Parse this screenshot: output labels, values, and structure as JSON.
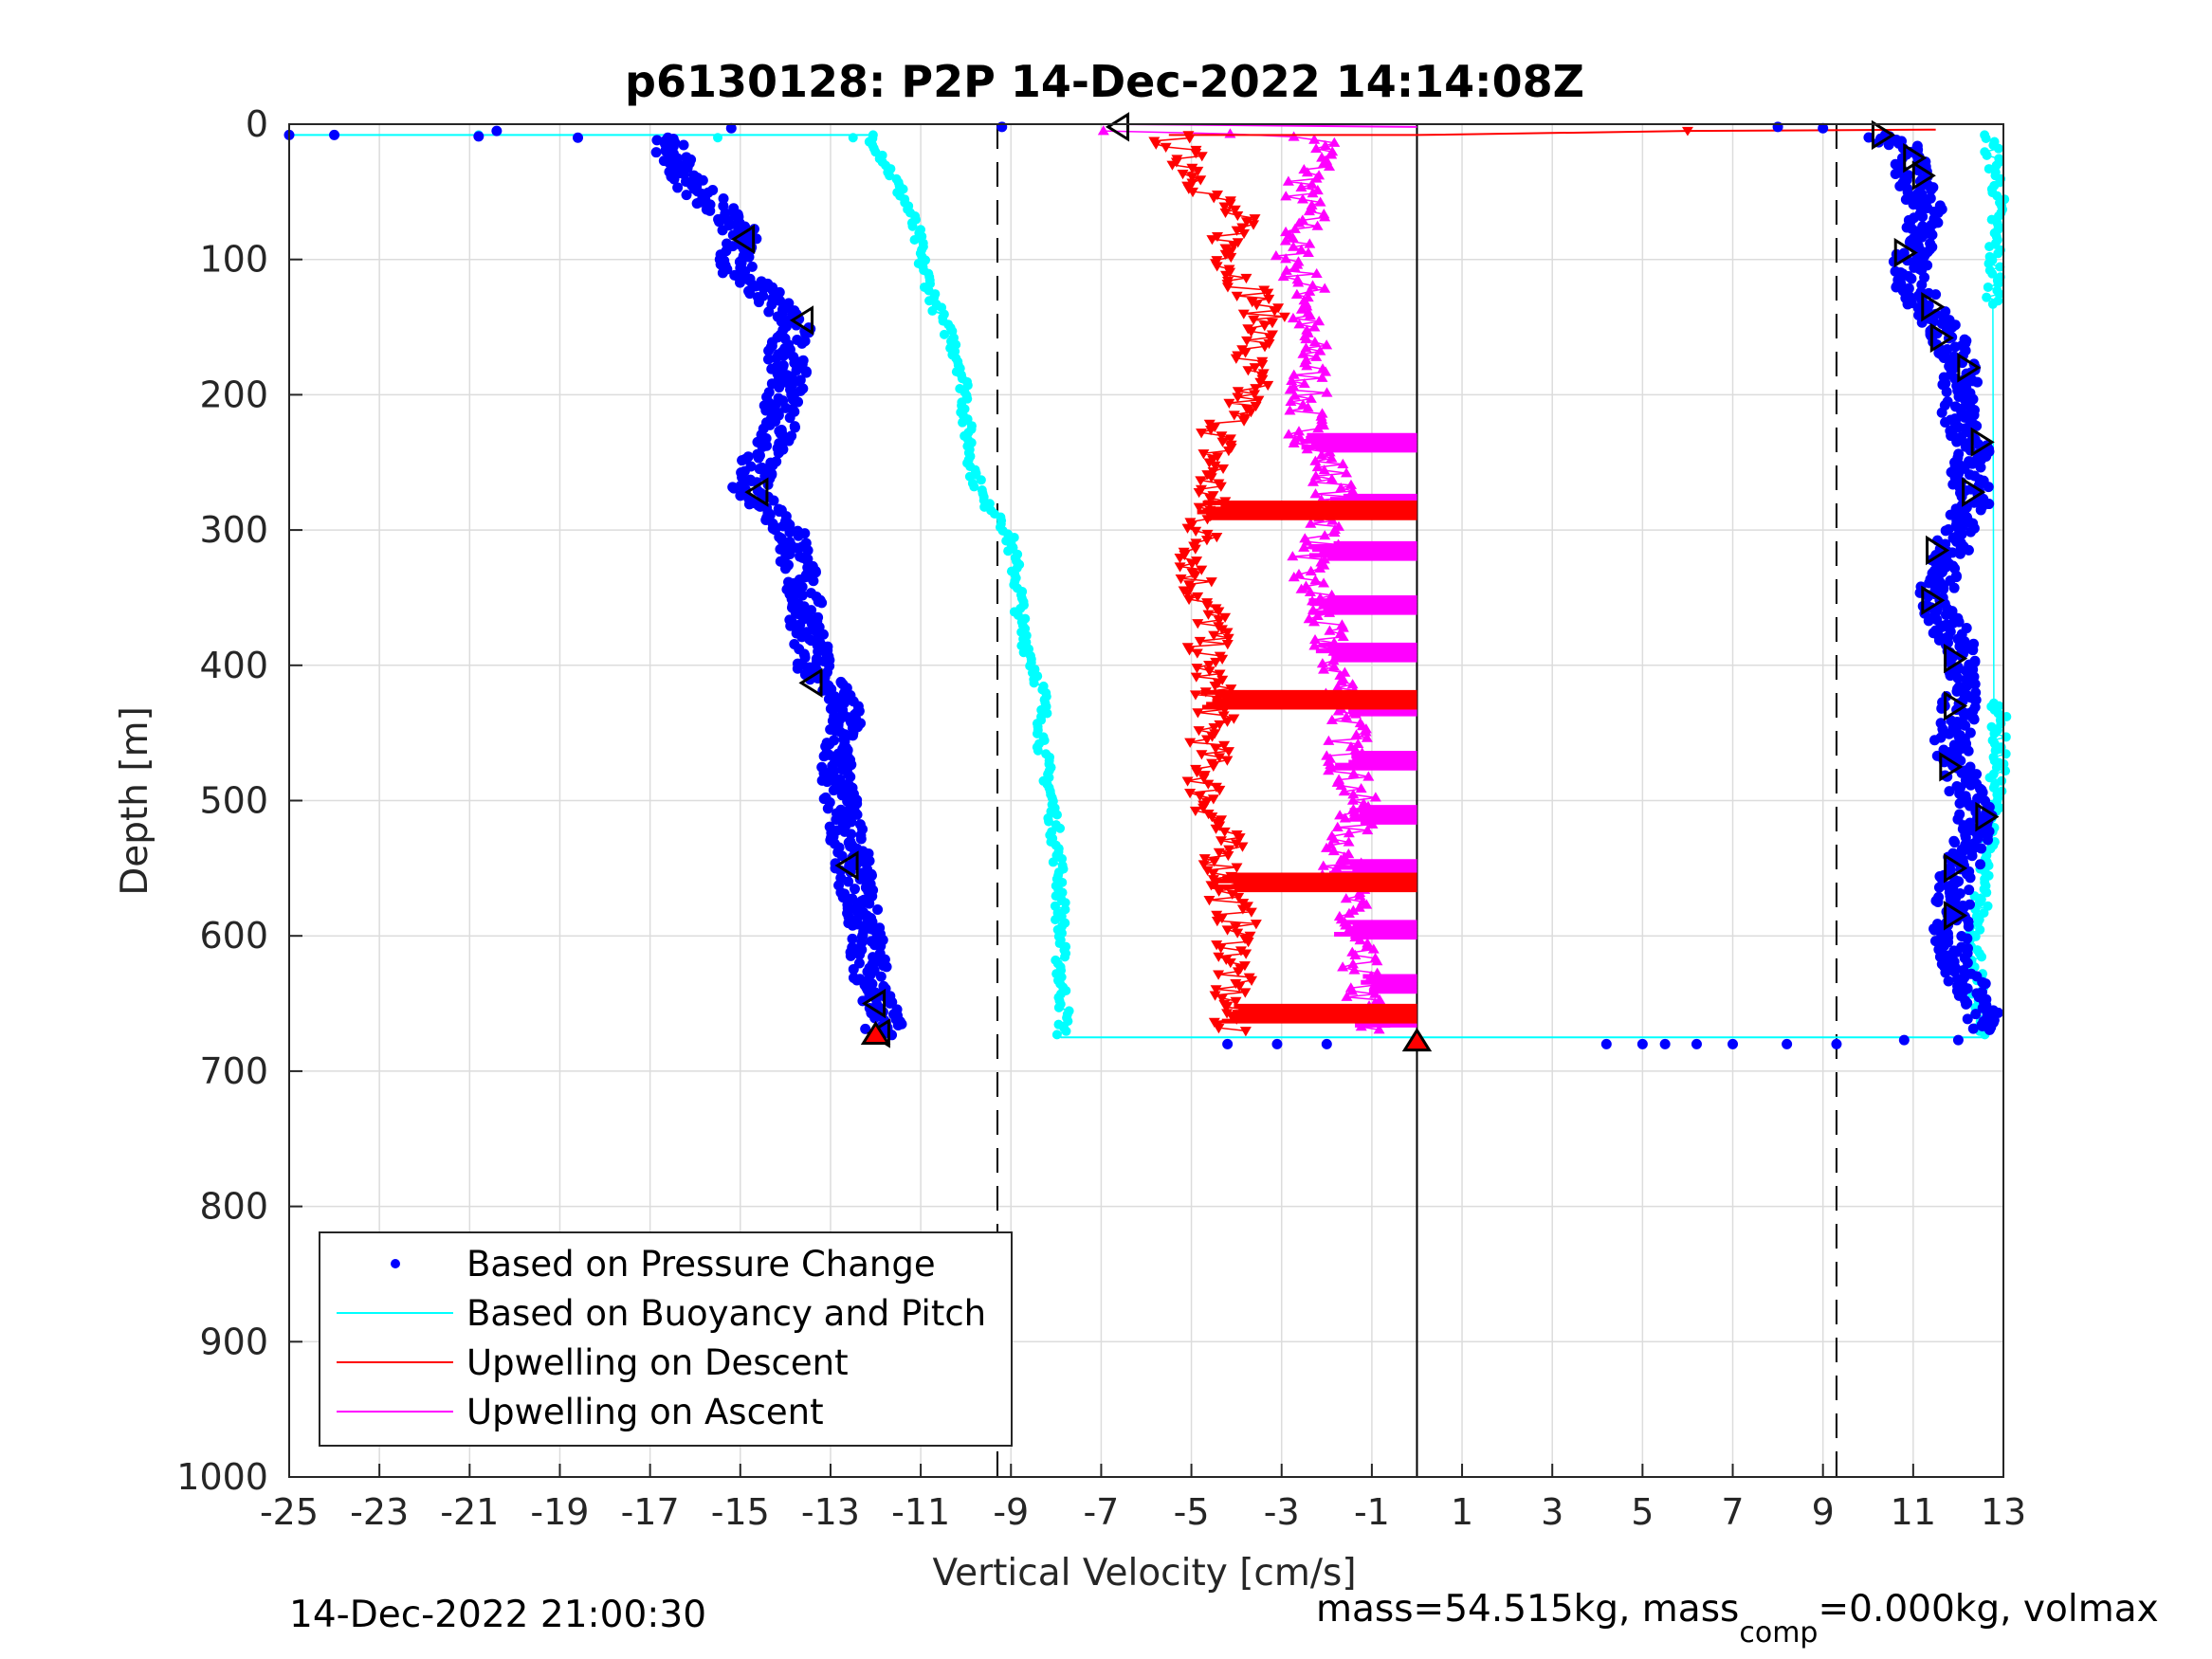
{
  "chart_data": {
    "type": "scatter",
    "title": "p6130128: P2P 14-Dec-2022 14:14:08Z",
    "xlabel": "Vertical Velocity [cm/s]",
    "ylabel": "Depth [m]",
    "xlim": [
      -25,
      13
    ],
    "ylim": [
      0,
      1000
    ],
    "y_reversed": true,
    "grid": true,
    "xticks": [
      -25,
      -23,
      -21,
      -19,
      -17,
      -15,
      -13,
      -11,
      -9,
      -7,
      -5,
      -3,
      -1,
      1,
      3,
      5,
      7,
      9,
      11,
      13
    ],
    "yticks": [
      0,
      100,
      200,
      300,
      400,
      500,
      600,
      700,
      800,
      900,
      1000
    ],
    "xtick_labels": [
      "-25",
      "-23",
      "-21",
      "-19",
      "-17",
      "-15",
      "-13",
      "-11",
      "-9",
      "-7",
      "-5",
      "-3",
      "-1",
      "1",
      "3",
      "5",
      "7",
      "9",
      "11",
      "13"
    ],
    "ytick_labels": [
      "0",
      "100",
      "200",
      "300",
      "400",
      "500",
      "600",
      "700",
      "800",
      "900",
      "1000"
    ],
    "legend_position": "bottom-left",
    "reference_lines": {
      "dashed_x": [
        -9.3,
        9.3
      ],
      "solid_x": 0,
      "max_depth": 675
    },
    "series": [
      {
        "name": "Based on Pressure Change",
        "style": "dots",
        "color": "#0000ff",
        "descent": {
          "depth": [
            10,
            20,
            40,
            60,
            80,
            95,
            110,
            130,
            150,
            170,
            190,
            210,
            230,
            250,
            270,
            290,
            310,
            330,
            350,
            370,
            400,
            420,
            440,
            470,
            500,
            530,
            550,
            570,
            600,
            630,
            650,
            665,
            675
          ],
          "velocity": [
            -16.8,
            -16.5,
            -16.2,
            -15.6,
            -15.0,
            -15.1,
            -15.0,
            -14.3,
            -13.8,
            -14.0,
            -13.9,
            -14.1,
            -14.2,
            -14.6,
            -14.8,
            -14.1,
            -13.8,
            -13.7,
            -13.6,
            -13.5,
            -13.4,
            -12.8,
            -12.7,
            -12.9,
            -12.8,
            -12.6,
            -12.5,
            -12.4,
            -12.2,
            -12.1,
            -11.9,
            -11.8,
            -11.9
          ]
        },
        "ascent": {
          "depth": [
            670,
            650,
            630,
            600,
            580,
            560,
            540,
            520,
            500,
            480,
            460,
            440,
            420,
            400,
            380,
            360,
            340,
            320,
            300,
            280,
            260,
            240,
            220,
            200,
            180,
            160,
            140,
            120,
            100,
            80,
            60,
            40,
            20,
            8
          ],
          "velocity": [
            12.6,
            12.5,
            12.1,
            11.8,
            11.9,
            11.9,
            12.2,
            12.4,
            12.3,
            12.0,
            11.8,
            12.0,
            12.0,
            12.1,
            11.9,
            11.6,
            11.5,
            11.8,
            12.0,
            12.4,
            12.2,
            12.3,
            12.0,
            12.0,
            12.1,
            11.8,
            11.4,
            11.0,
            10.9,
            11.2,
            11.3,
            11.0,
            10.9,
            10.3
          ]
        },
        "surface_points": [
          [
            -25,
            8
          ],
          [
            -24,
            8
          ],
          [
            -20.4,
            5
          ],
          [
            -20.8,
            9
          ],
          [
            -18.6,
            10
          ],
          [
            -15.2,
            3
          ],
          [
            -9.2,
            2
          ],
          [
            -4.2,
            680
          ],
          [
            -3.1,
            680
          ],
          [
            -2.0,
            680
          ],
          [
            4.2,
            680
          ],
          [
            5.0,
            680
          ],
          [
            5.5,
            680
          ],
          [
            6.2,
            680
          ],
          [
            7.0,
            680
          ],
          [
            8.2,
            680
          ],
          [
            9.3,
            680
          ],
          [
            10.8,
            677
          ],
          [
            12.0,
            677
          ],
          [
            8.0,
            2
          ],
          [
            9.0,
            3
          ]
        ]
      },
      {
        "name": "Based on Buoyancy and Pitch",
        "style": "line+dots",
        "color": "#00ffff",
        "descent": {
          "depth": [
            8,
            20,
            40,
            60,
            80,
            100,
            120,
            140,
            160,
            180,
            200,
            220,
            240,
            260,
            280,
            290,
            310,
            330,
            350,
            370,
            400,
            420,
            440,
            460,
            500,
            530,
            560,
            600,
            630,
            660,
            675
          ],
          "velocity": [
            -12.1,
            -11.9,
            -11.6,
            -11.3,
            -11.1,
            -11.0,
            -10.8,
            -10.6,
            -10.3,
            -10.1,
            -10.0,
            -10.0,
            -9.9,
            -9.8,
            -9.6,
            -9.2,
            -9.0,
            -8.9,
            -8.8,
            -8.8,
            -8.5,
            -8.3,
            -8.3,
            -8.3,
            -8.1,
            -8.0,
            -7.9,
            -7.9,
            -7.9,
            -7.8,
            -7.9
          ]
        },
        "ascent": {
          "depth": [
            675,
            660,
            640,
            620,
            600,
            580,
            560,
            540,
            520,
            500,
            470,
            430,
            130,
            110,
            90,
            70,
            50,
            30,
            12,
            8
          ],
          "velocity": [
            12.6,
            12.5,
            12.4,
            12.4,
            12.4,
            12.5,
            12.5,
            12.6,
            12.7,
            12.8,
            12.9,
            12.9,
            12.8,
            12.8,
            12.8,
            12.8,
            12.9,
            12.8,
            12.7,
            12.6
          ]
        }
      },
      {
        "name": "Upwelling on Descent",
        "style": "line+down-triangles",
        "color": "#ff0000",
        "depth": [
          5,
          15,
          30,
          50,
          70,
          90,
          110,
          130,
          150,
          170,
          190,
          210,
          230,
          250,
          270,
          290,
          310,
          330,
          350,
          370,
          390,
          410,
          430,
          450,
          470,
          490,
          510,
          530,
          550,
          570,
          590,
          610,
          630,
          650,
          670
        ],
        "velocity": [
          -5.5,
          -5.4,
          -5.0,
          -4.6,
          -4.0,
          -4.2,
          -4.0,
          -3.5,
          -3.3,
          -3.8,
          -3.7,
          -3.9,
          -4.4,
          -4.5,
          -4.6,
          -4.7,
          -4.8,
          -4.9,
          -4.8,
          -4.5,
          -4.7,
          -4.6,
          -4.4,
          -4.6,
          -4.6,
          -4.7,
          -4.5,
          -4.3,
          -4.3,
          -4.2,
          -4.0,
          -4.0,
          -4.1,
          -4.2,
          -4.1
        ],
        "spikes_depth": [
          280,
          420,
          555,
          652
        ],
        "spikes_velocity": 0,
        "surface_spike": [
          [
            0,
            8
          ],
          [
            6,
            5
          ],
          [
            11.5,
            4
          ]
        ]
      },
      {
        "name": "Upwelling on Ascent",
        "style": "line+up-triangles",
        "color": "#ff00ff",
        "depth": [
          670,
          650,
          630,
          610,
          590,
          570,
          550,
          530,
          510,
          490,
          470,
          450,
          430,
          410,
          390,
          370,
          350,
          330,
          310,
          290,
          270,
          250,
          230,
          210,
          190,
          170,
          150,
          130,
          110,
          90,
          70,
          50,
          30,
          10,
          5
        ],
        "velocity": [
          -1.0,
          -1.2,
          -1.2,
          -1.4,
          -1.6,
          -1.5,
          -1.7,
          -1.6,
          -1.3,
          -1.4,
          -1.6,
          -1.5,
          -1.5,
          -1.7,
          -1.9,
          -2.1,
          -2.2,
          -2.6,
          -2.1,
          -1.9,
          -1.8,
          -2.0,
          -2.4,
          -2.5,
          -2.4,
          -2.3,
          -2.6,
          -2.3,
          -2.6,
          -2.8,
          -2.4,
          -2.6,
          -2.2,
          -2.0,
          -6.5
        ],
        "spikes_depth": [
          230,
          275,
          310,
          350,
          385,
          425,
          465,
          505,
          545,
          590,
          630,
          655
        ],
        "spikes_velocity": 0
      }
    ],
    "triangle_markers": {
      "descent_left": [
        [
          -14.9,
          85
        ],
        [
          -13.6,
          145
        ],
        [
          -14.6,
          272
        ],
        [
          -13.4,
          413
        ],
        [
          -12.6,
          548
        ],
        [
          -12.0,
          650
        ],
        [
          -11.9,
          672
        ]
      ],
      "ascent_right": [
        [
          10.3,
          8
        ],
        [
          11.0,
          25
        ],
        [
          11.2,
          38
        ],
        [
          10.8,
          95
        ],
        [
          11.4,
          135
        ],
        [
          11.6,
          158
        ],
        [
          12.2,
          180
        ],
        [
          12.5,
          235
        ],
        [
          12.3,
          272
        ],
        [
          11.5,
          315
        ],
        [
          11.4,
          352
        ],
        [
          11.9,
          395
        ],
        [
          11.9,
          430
        ],
        [
          11.8,
          475
        ],
        [
          12.6,
          512
        ],
        [
          11.9,
          550
        ],
        [
          11.9,
          585
        ]
      ],
      "surface_left": [
        [
          -6.6,
          2
        ]
      ],
      "bottom_red": [
        [
          0,
          678
        ],
        [
          -12,
          673
        ]
      ]
    }
  },
  "footer": {
    "timestamp": "14-Dec-2022 21:00:30",
    "mass_text": "mass=54.515kg, mass",
    "mass_sub": "comp",
    "mass_rest": "=0.000kg, volmax"
  }
}
